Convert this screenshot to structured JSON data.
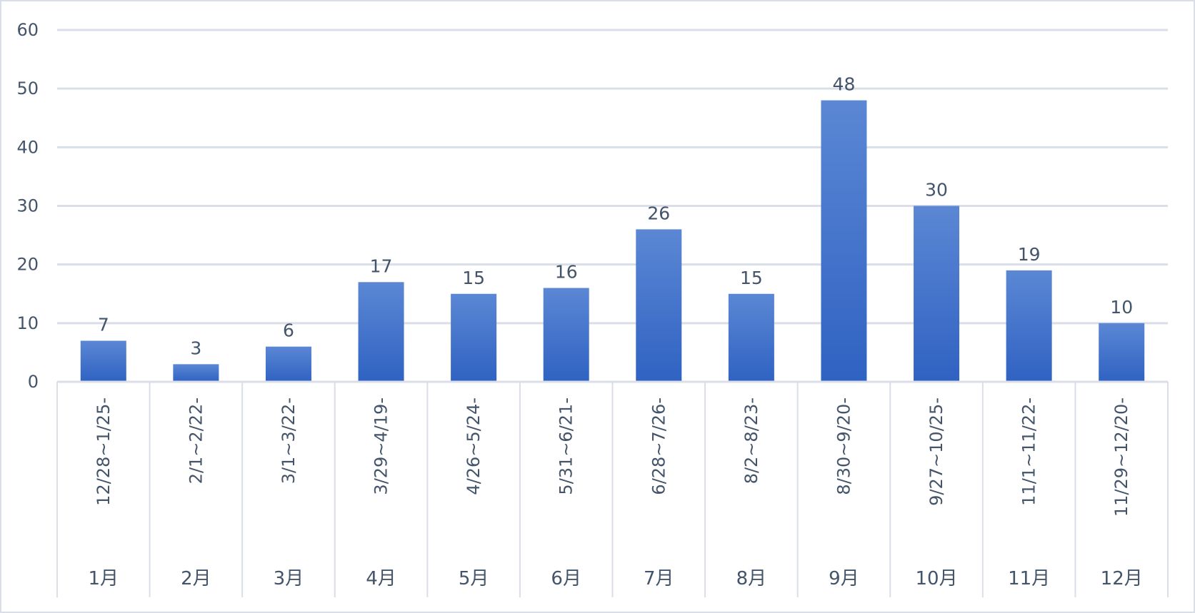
{
  "chart_data": {
    "type": "bar",
    "title": "",
    "xlabel": "",
    "ylabel": "",
    "ylim": [
      0,
      60
    ],
    "y_ticks": [
      0,
      10,
      20,
      30,
      40,
      50,
      60
    ],
    "grid": true,
    "legend": "none",
    "bar_color": "#3f6fcc",
    "bar_color_top": "#5b87d4",
    "bar_color_bottom": "#2f62c2",
    "grid_color": "#d9dee8",
    "text_color": "#44546a",
    "categories": [
      "12/28~1/25-",
      "2/1~2/22-",
      "3/1~3/22-",
      "3/29~4/19-",
      "4/26~5/24-",
      "5/31~6/21-",
      "6/28~7/26-",
      "8/2~8/23-",
      "8/30~9/20-",
      "9/27~10/25-",
      "11/1~11/22-",
      "11/29~12/20-"
    ],
    "groups": [
      "1月",
      "2月",
      "3月",
      "4月",
      "5月",
      "6月",
      "7月",
      "8月",
      "9月",
      "10月",
      "11月",
      "12月"
    ],
    "values": [
      7,
      3,
      6,
      17,
      15,
      16,
      26,
      15,
      48,
      30,
      19,
      10
    ]
  }
}
